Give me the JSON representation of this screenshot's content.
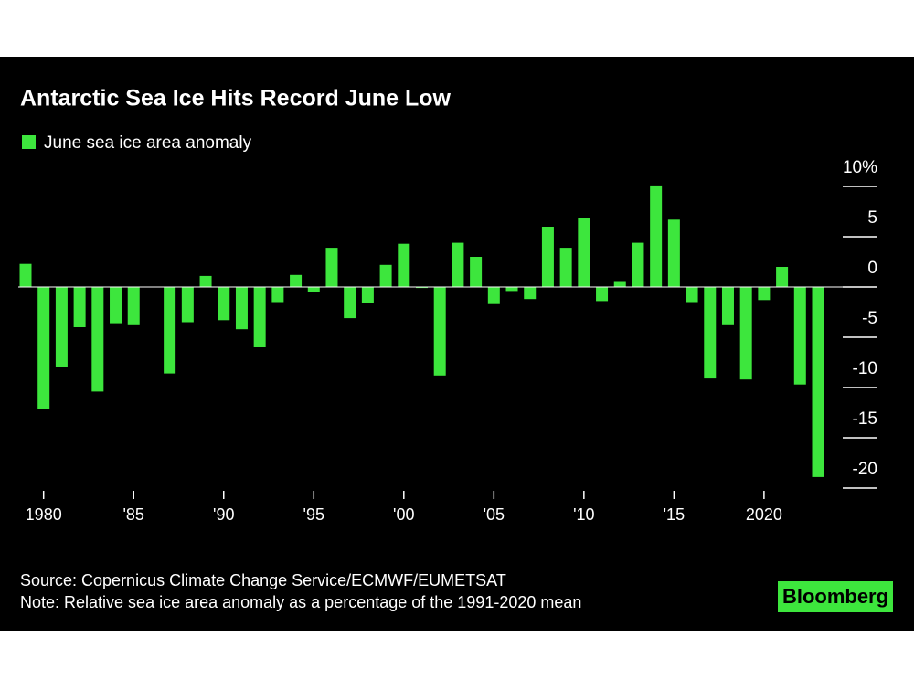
{
  "chart_data": {
    "type": "bar",
    "title": "Antarctic Sea Ice Hits Record June Low",
    "x": [
      1979,
      1980,
      1981,
      1982,
      1983,
      1984,
      1985,
      1986,
      1987,
      1988,
      1989,
      1990,
      1991,
      1992,
      1993,
      1994,
      1995,
      1996,
      1997,
      1998,
      1999,
      2000,
      2001,
      2002,
      2003,
      2004,
      2005,
      2006,
      2007,
      2008,
      2009,
      2010,
      2011,
      2012,
      2013,
      2014,
      2015,
      2016,
      2017,
      2018,
      2019,
      2020,
      2021,
      2022,
      2023
    ],
    "series": [
      {
        "name": "June sea ice area anomaly",
        "color": "#3de63d",
        "values": [
          2.3,
          -12.1,
          -8,
          -4,
          -10.4,
          -3.6,
          -3.8,
          0,
          -8.6,
          -3.5,
          1.1,
          -3.3,
          -4.2,
          -6,
          -1.5,
          1.2,
          -0.5,
          3.9,
          -3.1,
          -1.6,
          2.2,
          4.3,
          -0.1,
          -8.8,
          4.4,
          3,
          -1.7,
          -0.4,
          -1.2,
          6,
          3.9,
          6.9,
          -1.4,
          0.5,
          4.4,
          10.1,
          6.7,
          -1.5,
          -9.1,
          -3.8,
          -9.2,
          -1.3,
          2,
          -9.7,
          -18.9
        ]
      }
    ],
    "xlim": [
      1978.5,
      2023.5
    ],
    "xticks": [
      1980,
      {
        "value": 1985,
        "label": "'85"
      },
      {
        "value": 1990,
        "label": "'90"
      },
      {
        "value": 1995,
        "label": "'95"
      },
      {
        "value": 2000,
        "label": "'00"
      },
      {
        "value": 2005,
        "label": "'05"
      },
      {
        "value": 2010,
        "label": "'10"
      },
      {
        "value": 2015,
        "label": "'15"
      },
      2020
    ],
    "ylim": [
      -20,
      10
    ],
    "yticks": [
      {
        "value": 10,
        "label": "10%"
      },
      5,
      0,
      -5,
      -10,
      -15,
      -20
    ],
    "source": "Source: Copernicus Climate Change Service/ECMWF/EUMETSAT",
    "note": "Note: Relative sea ice area anomaly as a percentage of the 1991-2020 mean",
    "logo": "Bloomberg"
  }
}
